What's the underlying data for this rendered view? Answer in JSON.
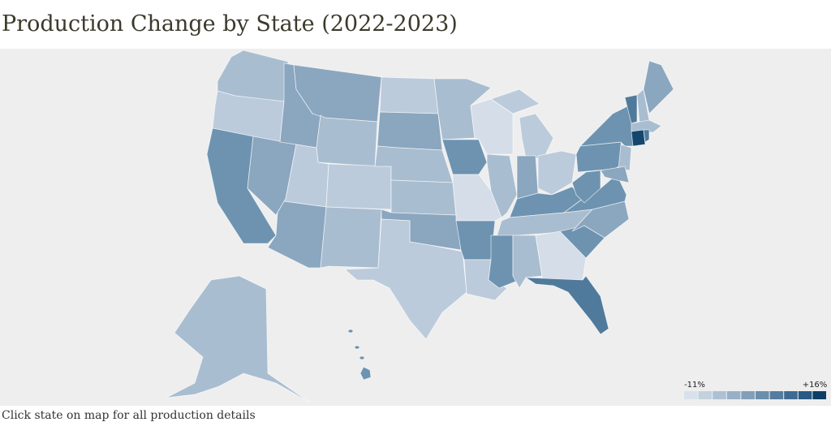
{
  "header": {
    "title": "Production Change by State (2022-2023)"
  },
  "legend": {
    "low_label": "-11%",
    "high_label": "+16%",
    "colors": [
      "#d8e1eb",
      "#c3d1de",
      "#adc1d3",
      "#97b0c6",
      "#819fb9",
      "#6b8eac",
      "#557c9f",
      "#3f6b92",
      "#295a84",
      "#0b3f66"
    ]
  },
  "footer": {
    "note": "Click state on map for all production details"
  }
}
